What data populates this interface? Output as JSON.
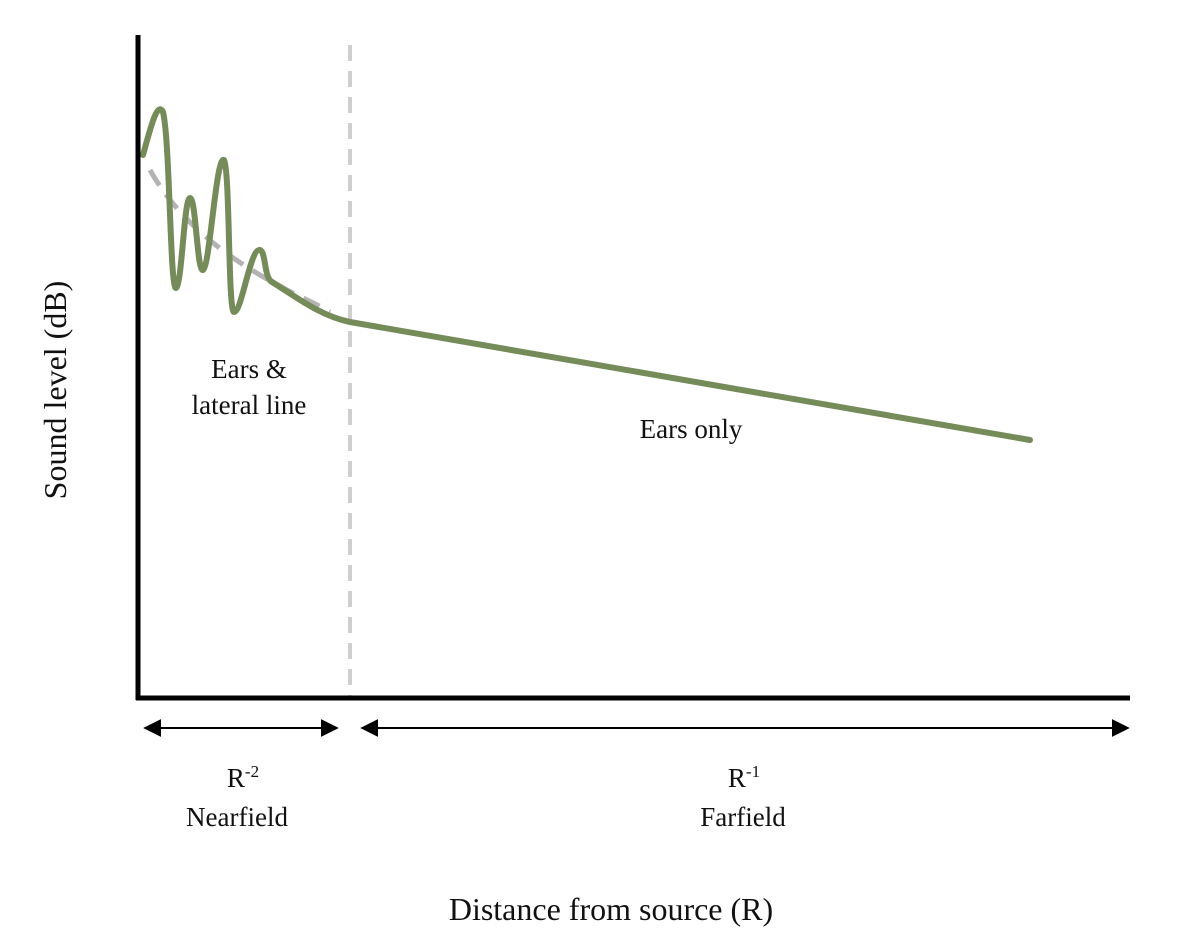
{
  "axes": {
    "x_label": "Distance from source (R)",
    "y_label": "Sound level (dB)"
  },
  "zones": [
    {
      "label_lines": [
        "Ears &",
        "lateral line"
      ]
    },
    {
      "label_lines": [
        "Ears only"
      ]
    }
  ],
  "ranges": [
    {
      "law": {
        "base": "R",
        "exponent": "-2"
      },
      "name": "Nearfield"
    },
    {
      "law": {
        "base": "R",
        "exponent": "-1"
      },
      "name": "Farfield"
    }
  ]
}
